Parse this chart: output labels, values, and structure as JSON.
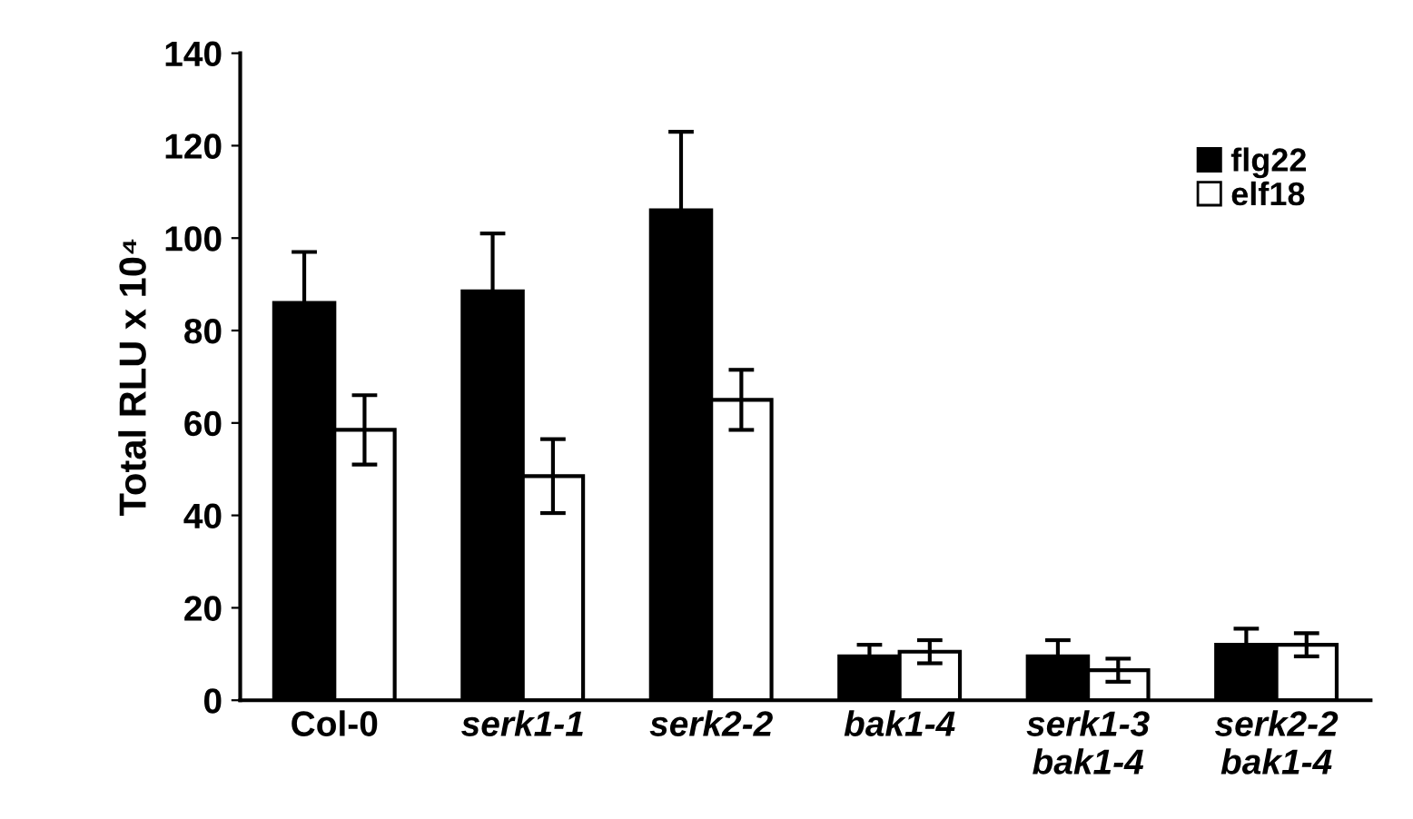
{
  "chart_data": {
    "type": "bar",
    "ylabel": "Total RLU x 10⁴",
    "categories": [
      "Col-0",
      "serk1-1",
      "serk2-2",
      "bak1-4",
      "serk1-3\nbak1-4",
      "serk2-2\nbak1-4"
    ],
    "series": [
      {
        "name": "flg22",
        "color": "#000000",
        "values": [
          86,
          88.5,
          106,
          9.5,
          9.5,
          12
        ],
        "errors": [
          11,
          12.5,
          17,
          2.5,
          3.5,
          3.5
        ]
      },
      {
        "name": "elf18",
        "color": "#ffffff",
        "values": [
          58.5,
          48.5,
          65,
          10.5,
          6.5,
          12
        ],
        "errors": [
          7.5,
          8,
          6.5,
          2.5,
          2.5,
          2.5
        ]
      }
    ],
    "ylim": [
      0,
      140
    ],
    "yticks": [
      0,
      20,
      40,
      60,
      80,
      100,
      120,
      140
    ],
    "grid": false,
    "legend": "top right"
  }
}
